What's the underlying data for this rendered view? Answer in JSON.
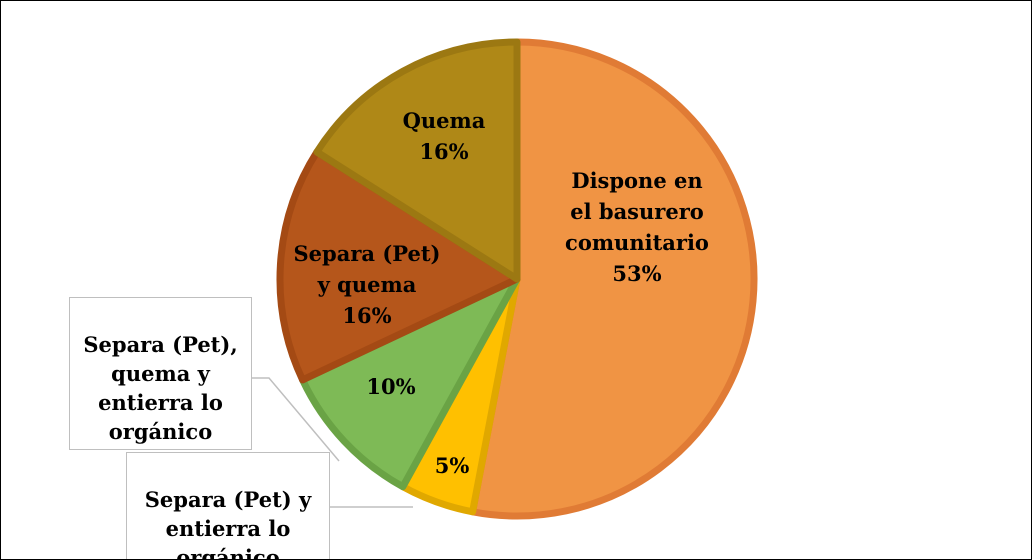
{
  "chart_data": {
    "type": "pie",
    "title": "",
    "slices": [
      {
        "label": "Dispone en el basurero comunitario",
        "label_lines": [
          "Dispone en",
          "el basurero",
          "comunitario"
        ],
        "value": 53,
        "display": "53%",
        "color": "#F09444",
        "edge": "#E07B35"
      },
      {
        "label": "Separa (Pet) y entierra lo orgánico",
        "label_lines": [
          "Separa (Pet) y",
          "entierra lo",
          "orgánico"
        ],
        "value": 5,
        "display": "5%",
        "color": "#FFC000",
        "edge": "#E0A800"
      },
      {
        "label": "Separa (Pet), quema y entierra lo orgánico",
        "label_lines": [
          "Separa (Pet),",
          "quema y",
          "entierra lo",
          "orgánico"
        ],
        "value": 10,
        "display": "10%",
        "color": "#7EBA56",
        "edge": "#6AA345"
      },
      {
        "label": "Separa (Pet) y quema",
        "label_lines": [
          "Separa (Pet)",
          "y quema"
        ],
        "value": 16,
        "display": "16%",
        "color": "#B5561B",
        "edge": "#A44A14"
      },
      {
        "label": "Quema",
        "label_lines": [
          "Quema"
        ],
        "value": 16,
        "display": "16%",
        "color": "#AF8817",
        "edge": "#9C7812"
      }
    ],
    "legend": "none",
    "data_labels": "inside and callouts"
  }
}
